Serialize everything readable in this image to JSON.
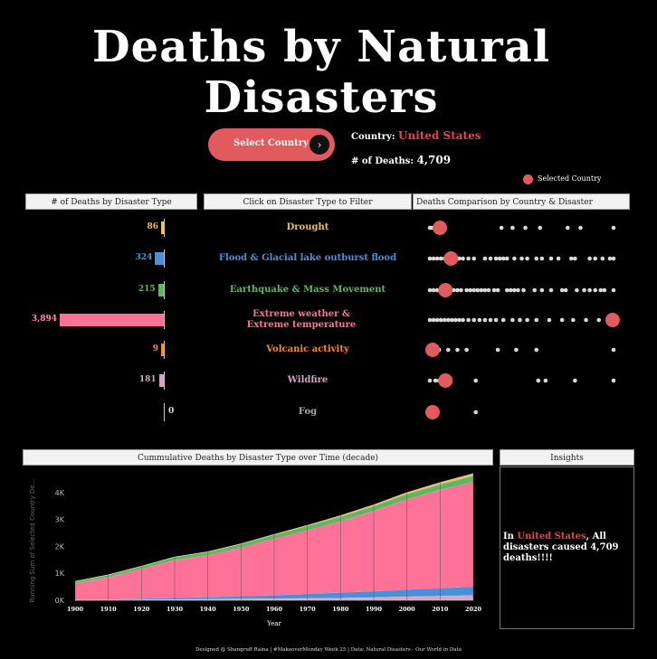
{
  "title": "Deaths by Natural Disasters",
  "select_button": {
    "label": "Select Country",
    "icon": "chevron-right-icon"
  },
  "country": {
    "label": "Country:",
    "value": "United States"
  },
  "deaths": {
    "label": "# of Deaths:",
    "value": "4,709"
  },
  "legend": {
    "selected_label": "Selected Country",
    "selected_color": "#e05a5e"
  },
  "panels": {
    "bar_header": "# of Deaths by Disaster Type",
    "filter_header": "Click on Disaster Type to Filter",
    "comparison_header": "Deaths Comparison by Country & Disaster",
    "area_header": "Cummulative Deaths by Disaster Type over Time (decade)",
    "insights_header": "Insights"
  },
  "disaster_types": [
    {
      "name": "Drought",
      "deaths": "86",
      "color": "#f0c05a"
    },
    {
      "name": "Flood & Glacial lake outburst flood",
      "deaths": "324",
      "color": "#4a90d9"
    },
    {
      "name": "Earthquake & Mass Movement",
      "deaths": "215",
      "color": "#5fb760"
    },
    {
      "name": "Extreme weather & Extreme temperature",
      "deaths": "3,894",
      "color": "#ff7298"
    },
    {
      "name": "Volcanic activity",
      "deaths": "9",
      "color": "#f5883a"
    },
    {
      "name": "Wildfire",
      "deaths": "181",
      "color": "#d8a3c0"
    },
    {
      "name": "Fog",
      "deaths": "0",
      "color": "#aaaaaa"
    }
  ],
  "chart_data": [
    {
      "type": "bar",
      "title": "# of Deaths by Disaster Type",
      "categories": [
        "Drought",
        "Flood & Glacial lake outburst flood",
        "Earthquake & Mass Movement",
        "Extreme weather & Extreme temperature",
        "Volcanic activity",
        "Wildfire",
        "Fog"
      ],
      "values": [
        86,
        324,
        215,
        3894,
        9,
        181,
        0
      ],
      "orientation": "horizontal-leftward"
    },
    {
      "type": "scatter",
      "title": "Deaths Comparison by Country & Disaster",
      "rows": [
        {
          "category": "Drought",
          "selected": 0.04,
          "others": [
            0.0,
            0.01,
            0.02,
            0.39,
            0.45,
            0.52,
            0.6,
            0.75,
            0.82,
            1.0
          ]
        },
        {
          "category": "Flood & Glacial lake outburst flood",
          "selected": 0.1,
          "others": [
            0.0,
            0.02,
            0.04,
            0.06,
            0.08,
            0.12,
            0.14,
            0.16,
            0.18,
            0.21,
            0.24,
            0.3,
            0.33,
            0.36,
            0.38,
            0.4,
            0.42,
            0.46,
            0.5,
            0.53,
            0.58,
            0.61,
            0.66,
            0.7,
            0.77,
            0.79,
            0.87,
            0.9,
            0.94,
            0.98,
            1.0
          ]
        },
        {
          "category": "Earthquake & Mass Movement",
          "selected": 0.07,
          "others": [
            0.0,
            0.02,
            0.04,
            0.06,
            0.09,
            0.11,
            0.13,
            0.15,
            0.17,
            0.2,
            0.22,
            0.24,
            0.26,
            0.28,
            0.3,
            0.32,
            0.35,
            0.37,
            0.42,
            0.44,
            0.46,
            0.48,
            0.51,
            0.57,
            0.61,
            0.66,
            0.72,
            0.74,
            0.8,
            0.84,
            0.87,
            0.9,
            0.93,
            0.95,
            1.0
          ]
        },
        {
          "category": "Extreme weather & Extreme temperature",
          "selected": 0.98,
          "others": [
            0.0,
            0.02,
            0.04,
            0.06,
            0.08,
            0.1,
            0.12,
            0.14,
            0.16,
            0.18,
            0.21,
            0.24,
            0.27,
            0.3,
            0.33,
            0.36,
            0.4,
            0.45,
            0.49,
            0.53,
            0.58,
            0.65,
            0.72,
            0.78,
            0.85,
            0.92,
            1.0
          ]
        },
        {
          "category": "Volcanic activity",
          "selected": 0.0,
          "others": [
            0.0,
            0.05,
            0.1,
            0.15,
            0.2,
            0.37,
            0.47,
            0.58,
            1.0
          ]
        },
        {
          "category": "Wildfire",
          "selected": 0.07,
          "others": [
            0.0,
            0.03,
            0.05,
            0.25,
            0.59,
            0.63,
            0.79,
            1.0
          ]
        },
        {
          "category": "Fog",
          "selected": 0.0,
          "others": [
            0.0,
            0.25
          ]
        }
      ]
    },
    {
      "type": "area",
      "title": "Cummulative Deaths by Disaster Type over Time (decade)",
      "xlabel": "Year",
      "ylabel": "Running Sum of Selected Country De...",
      "x": [
        1900,
        1910,
        1920,
        1930,
        1940,
        1950,
        1960,
        1970,
        1980,
        1990,
        2000,
        2010,
        2020
      ],
      "ylim": [
        0,
        4700
      ],
      "yticks": [
        0,
        1000,
        2000,
        3000,
        4000
      ],
      "ytick_labels": [
        "0K",
        "1K",
        "2K",
        "3K",
        "4K"
      ],
      "series": [
        {
          "values": [
            0,
            10,
            20,
            30,
            40,
            50,
            55,
            70,
            80,
            100,
            130,
            150,
            181
          ],
          "color": "#d8a3c0"
        },
        {
          "values": [
            0,
            1,
            2,
            3,
            4,
            5,
            6,
            7,
            8,
            8,
            9,
            9,
            9
          ],
          "color": "#f5883a"
        },
        {
          "values": [
            0,
            20,
            40,
            60,
            80,
            100,
            130,
            170,
            200,
            230,
            260,
            290,
            324
          ],
          "color": "#4a90d9"
        },
        {
          "values": [
            620,
            820,
            1100,
            1400,
            1550,
            1800,
            2100,
            2350,
            2650,
            2980,
            3350,
            3650,
            3894
          ],
          "color": "#ff7298"
        },
        {
          "values": [
            80,
            90,
            100,
            110,
            120,
            130,
            140,
            160,
            170,
            180,
            195,
            205,
            215
          ],
          "color": "#5fb760"
        },
        {
          "values": [
            2,
            4,
            6,
            8,
            10,
            15,
            20,
            30,
            40,
            50,
            60,
            70,
            86
          ],
          "color": "#f0c05a"
        }
      ]
    }
  ],
  "insights": {
    "pre": "In ",
    "country": "United States",
    "post": ", All disasters caused 4,709 deaths!!!!"
  },
  "footer": "Designed @ Shangruff Raina | #MakeoverMonday Week 25 | Data: Natural Disasters - Our World in Data"
}
